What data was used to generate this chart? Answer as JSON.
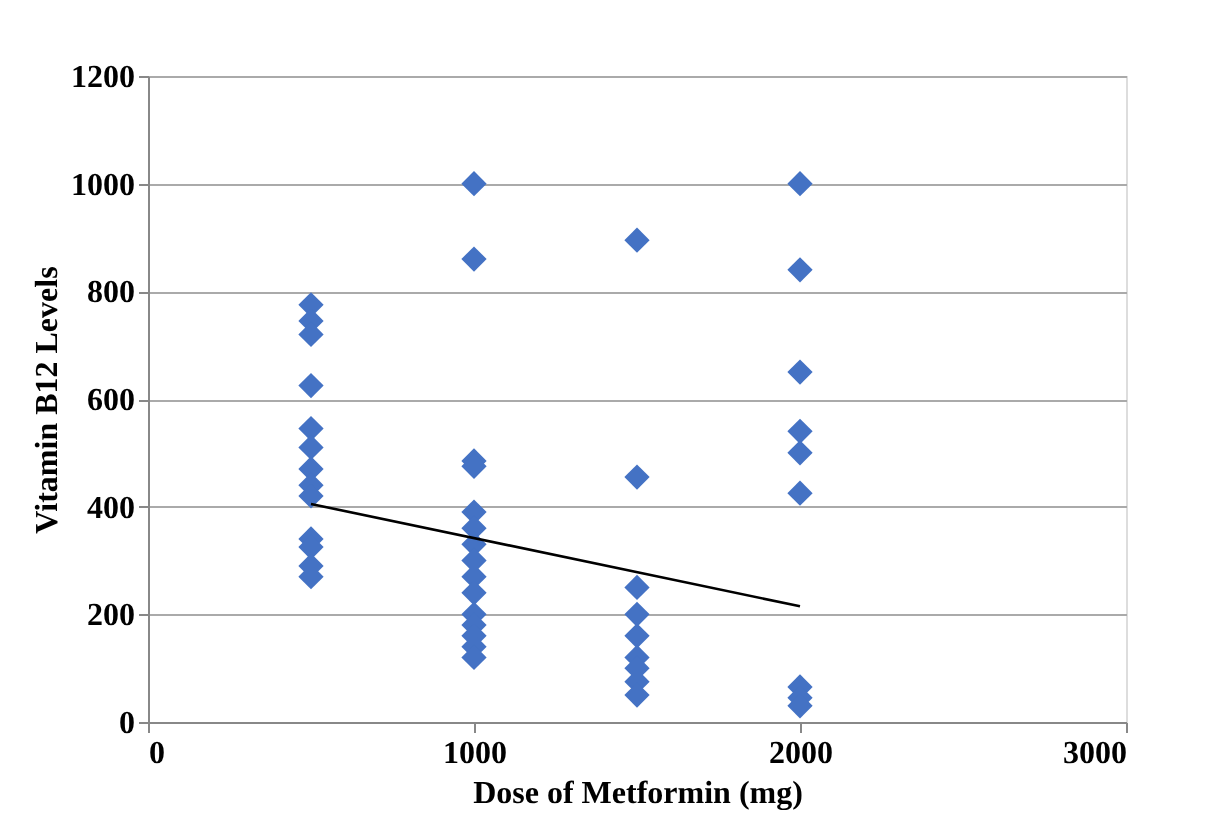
{
  "chart_data": {
    "type": "scatter",
    "xlabel": "Dose of Metformin (mg)",
    "ylabel": "Vitamin B12 Levels",
    "xlim": [
      0,
      3000
    ],
    "xticks": [
      0,
      1000,
      2000,
      3000
    ],
    "ylim": [
      0,
      1200
    ],
    "yticks": [
      0,
      200,
      400,
      600,
      800,
      1000,
      1200
    ],
    "grid": "y",
    "marker": "diamond",
    "series": [
      {
        "color": "#4472c4",
        "x": [
          500,
          500,
          500,
          500,
          500,
          500,
          500,
          500,
          500,
          500,
          500,
          500,
          500,
          1000,
          1000,
          1000,
          1000,
          1000,
          1000,
          1000,
          1000,
          1000,
          1000,
          1000,
          1000,
          1000,
          1000,
          1000,
          1500,
          1500,
          1500,
          1500,
          1500,
          1500,
          1500,
          1500,
          1500,
          2000,
          2000,
          2000,
          2000,
          2000,
          2000,
          2000,
          2000,
          2000
        ],
        "values": [
          775,
          745,
          720,
          625,
          545,
          510,
          470,
          440,
          420,
          340,
          325,
          290,
          270,
          1000,
          860,
          485,
          475,
          390,
          360,
          330,
          300,
          270,
          240,
          200,
          180,
          160,
          140,
          120,
          895,
          455,
          250,
          200,
          160,
          120,
          100,
          75,
          50,
          1000,
          840,
          650,
          540,
          500,
          425,
          65,
          45,
          30
        ]
      },
      {
        "type": "line",
        "color": "#000000",
        "x": [
          500,
          2000
        ],
        "values": [
          405,
          215
        ],
        "marker": "none",
        "line_style": "solid"
      }
    ]
  }
}
